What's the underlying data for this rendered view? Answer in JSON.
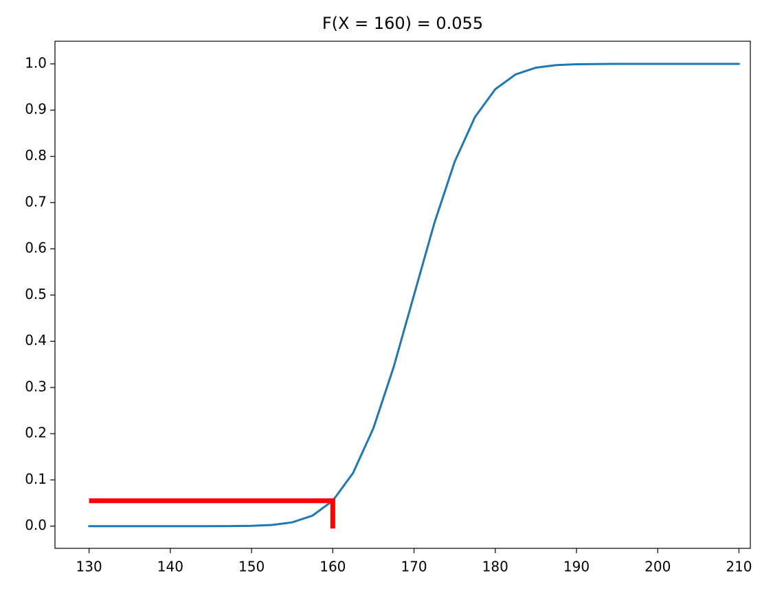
{
  "chart_data": {
    "type": "line",
    "title": "F(X = 160) = 0.055",
    "series": [
      {
        "color": "#1f77b4",
        "x": [
          130,
          135,
          140,
          145,
          147.5,
          150,
          152.5,
          155,
          157.5,
          160,
          162.5,
          165,
          167.5,
          170,
          172.5,
          175,
          177.5,
          180,
          182.5,
          185,
          187.5,
          190,
          195,
          200,
          205,
          210
        ],
        "values": [
          0,
          0,
          0,
          3e-05,
          0.0002,
          0.0007,
          0.0026,
          0.0082,
          0.0228,
          0.055,
          0.1151,
          0.2119,
          0.3446,
          0.5,
          0.6554,
          0.7881,
          0.8849,
          0.9452,
          0.9772,
          0.9918,
          0.9974,
          0.9993,
          1,
          1,
          1,
          1
        ]
      },
      {
        "color": "#ff0000",
        "x": [
          130,
          160,
          160
        ],
        "values": [
          0.055,
          0.055,
          -0.005
        ]
      }
    ],
    "xlim": [
      125.8,
      211.4
    ],
    "ylim": [
      -0.048,
      1.049
    ],
    "xticks": [
      130,
      140,
      150,
      160,
      170,
      180,
      190,
      200,
      210
    ],
    "yticks": [
      {
        "value": 0,
        "label": "0.0"
      },
      0.1,
      0.2,
      0.3,
      0.4,
      0.5,
      0.6,
      0.7,
      0.8,
      0.9,
      {
        "value": 1,
        "label": "1.0"
      }
    ],
    "grid": false
  }
}
